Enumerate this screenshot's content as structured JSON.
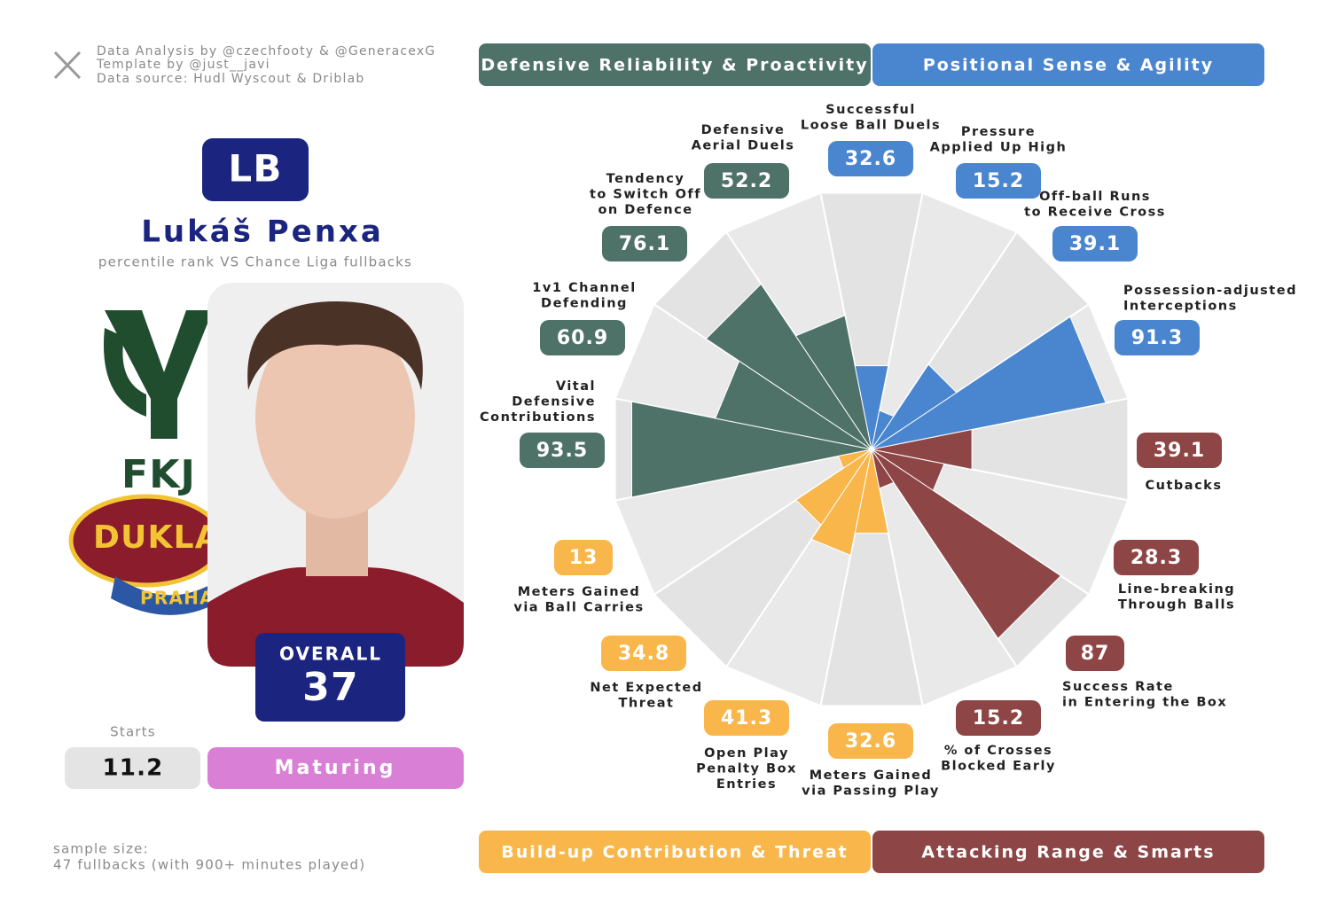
{
  "header": {
    "credits": [
      "Data Analysis by @czechfooty & @GeneracexG",
      "Template by @just__javi",
      "Data source: Hudl Wyscout & Driblab"
    ],
    "position": "LB",
    "name": "Lukáš Penxa",
    "subtitle": "percentile rank VS Chance Liga fullbacks"
  },
  "logo": [
    "FKJ",
    "DUKLA",
    "PRAHA"
  ],
  "overall": {
    "label": "OVERALL",
    "value": 37
  },
  "starts": {
    "label": "Starts",
    "value": 11.2
  },
  "tag": "Maturing",
  "sample": [
    "sample size:",
    "47 fullbacks (with 900+ minutes played)"
  ],
  "chart_data": {
    "type": "polar-bar",
    "categories": [
      [
        "Successful",
        "Loose Ball Duels"
      ],
      [
        "Pressure",
        "Applied Up High"
      ],
      [
        "Off-ball Runs",
        "to Receive Cross"
      ],
      [
        "Possession-adjusted",
        "Interceptions"
      ],
      [
        "Cutbacks"
      ],
      [
        "Line-breaking",
        "Through Balls"
      ],
      [
        "Success Rate",
        "in Entering the Box"
      ],
      [
        "% of Crosses",
        "Blocked Early"
      ],
      [
        "Meters Gained",
        "via Passing Play"
      ],
      [
        "Open Play",
        "Penalty Box",
        "Entries"
      ],
      [
        "Net Expected",
        "Threat"
      ],
      [
        "Meters Gained",
        "via Ball Carries"
      ],
      [
        "Vital",
        "Defensive",
        "Contributions"
      ],
      [
        "1v1 Channel",
        "Defending"
      ],
      [
        "Tendency",
        "to Switch Off",
        "on Defence"
      ],
      [
        "Defensive",
        "Aerial Duels"
      ]
    ],
    "ylim": [
      0,
      100
    ],
    "series": [
      {
        "name": "Defensive Reliability & Proactivity",
        "color": "#4f7268",
        "values": [
          null,
          null,
          null,
          null,
          null,
          null,
          null,
          null,
          null,
          null,
          null,
          null,
          93.5,
          60.9,
          76.1,
          52.2
        ]
      },
      {
        "name": "Positional Sense & Agility",
        "color": "#4a86d0",
        "values": [
          32.6,
          15.2,
          39.1,
          91.3,
          null,
          null,
          null,
          null,
          null,
          null,
          null,
          null,
          null,
          null,
          null,
          null
        ]
      },
      {
        "name": "Build-up Contribution & Threat",
        "color": "#f9b64b",
        "values": [
          null,
          null,
          null,
          null,
          null,
          null,
          null,
          null,
          32.6,
          41.3,
          34.8,
          13,
          null,
          null,
          null,
          null
        ]
      },
      {
        "name": "Attacking Range & Smarts",
        "color": "#8e4545",
        "values": [
          null,
          null,
          null,
          null,
          39.1,
          28.3,
          87,
          15.2,
          null,
          null,
          null,
          null,
          null,
          null,
          null,
          null
        ]
      }
    ]
  }
}
